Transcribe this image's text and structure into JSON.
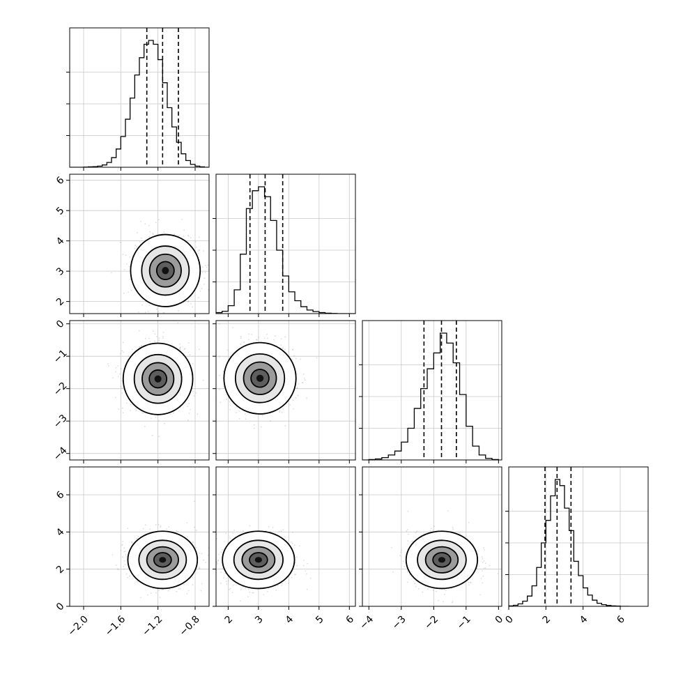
{
  "chart_data": {
    "type": "corner",
    "title": "",
    "variables": [
      {
        "range": [
          -2.15,
          -0.65
        ],
        "ticks": [
          "−2.0",
          "−1.6",
          "−1.2",
          "−0.8"
        ],
        "tick_values": [
          -2.0,
          -1.6,
          -1.2,
          -0.8
        ],
        "quantiles": [
          -1.32,
          -1.15,
          -0.98
        ]
      },
      {
        "range": [
          1.6,
          6.2
        ],
        "ticks": [
          "2",
          "3",
          "4",
          "5",
          "6"
        ],
        "tick_values": [
          2,
          3,
          4,
          5,
          6
        ],
        "quantiles": [
          2.72,
          3.22,
          3.8
        ]
      },
      {
        "range": [
          -4.2,
          0.1
        ],
        "ticks": [
          "−4",
          "−3",
          "−2",
          "−1",
          "0"
        ],
        "tick_values": [
          -4,
          -3,
          -2,
          -1,
          0
        ],
        "quantiles": [
          -2.3,
          -1.76,
          -1.3
        ]
      },
      {
        "range": [
          0.0,
          7.5
        ],
        "ticks": [
          "0",
          "2",
          "4",
          "6"
        ],
        "tick_values": [
          0,
          2,
          4,
          6
        ],
        "quantiles": [
          1.95,
          2.6,
          3.35
        ]
      }
    ],
    "marginal_histograms": [
      {
        "bin_edges": [
          -2.15,
          -2.1,
          -2.05,
          -2.0,
          -1.95,
          -1.9,
          -1.85,
          -1.8,
          -1.75,
          -1.7,
          -1.65,
          -1.6,
          -1.55,
          -1.5,
          -1.45,
          -1.4,
          -1.35,
          -1.3,
          -1.25,
          -1.2,
          -1.15,
          -1.1,
          -1.05,
          -1.0,
          -0.95,
          -0.9,
          -0.85,
          -0.8,
          -0.75,
          -0.7,
          -0.65
        ],
        "counts": [
          0,
          0,
          0,
          1,
          2,
          3,
          6,
          12,
          25,
          50,
          95,
          160,
          250,
          360,
          480,
          570,
          640,
          660,
          640,
          560,
          440,
          310,
          210,
          130,
          70,
          35,
          15,
          6,
          2,
          0
        ]
      },
      {
        "bin_edges": [
          1.6,
          1.8,
          2.0,
          2.2,
          2.4,
          2.6,
          2.8,
          3.0,
          3.2,
          3.4,
          3.6,
          3.8,
          4.0,
          4.2,
          4.4,
          4.6,
          4.8,
          5.0,
          5.2,
          5.4,
          5.6,
          5.8,
          6.0,
          6.2
        ],
        "counts": [
          5,
          12,
          40,
          120,
          300,
          530,
          620,
          640,
          590,
          470,
          320,
          190,
          110,
          65,
          35,
          18,
          10,
          5,
          2,
          1,
          0,
          0,
          0
        ]
      },
      {
        "bin_edges": [
          -4.2,
          -4.0,
          -3.8,
          -3.6,
          -3.4,
          -3.2,
          -3.0,
          -2.8,
          -2.6,
          -2.4,
          -2.2,
          -2.0,
          -1.8,
          -1.6,
          -1.4,
          -1.2,
          -1.0,
          -0.8,
          -0.6,
          -0.4,
          -0.2,
          0.0
        ],
        "counts": [
          0,
          2,
          5,
          12,
          25,
          45,
          90,
          160,
          260,
          360,
          460,
          540,
          640,
          590,
          490,
          330,
          170,
          70,
          25,
          8,
          2
        ]
      },
      {
        "bin_edges": [
          0.0,
          0.25,
          0.5,
          0.75,
          1.0,
          1.25,
          1.5,
          1.75,
          2.0,
          2.25,
          2.5,
          2.75,
          3.0,
          3.25,
          3.5,
          3.75,
          4.0,
          4.25,
          4.5,
          4.75,
          5.0,
          5.25,
          5.5,
          5.75,
          6.0,
          6.25,
          6.5
        ],
        "counts": [
          2,
          5,
          12,
          25,
          50,
          100,
          190,
          310,
          420,
          540,
          620,
          590,
          480,
          370,
          220,
          150,
          90,
          55,
          30,
          15,
          8,
          4,
          2,
          1,
          0,
          0
        ]
      }
    ],
    "joint_peaks": [
      {
        "x_var": 0,
        "y_var": 1,
        "peak": [
          -1.12,
          3.02
        ]
      },
      {
        "x_var": 0,
        "y_var": 2,
        "peak": [
          -1.2,
          -1.7
        ]
      },
      {
        "x_var": 1,
        "y_var": 2,
        "peak": [
          3.05,
          -1.68
        ]
      },
      {
        "x_var": 0,
        "y_var": 3,
        "peak": [
          -1.15,
          2.5
        ]
      },
      {
        "x_var": 1,
        "y_var": 3,
        "peak": [
          3.0,
          2.5
        ]
      },
      {
        "x_var": 2,
        "y_var": 3,
        "peak": [
          -1.75,
          2.5
        ]
      }
    ],
    "grid": true,
    "legend": "none"
  }
}
